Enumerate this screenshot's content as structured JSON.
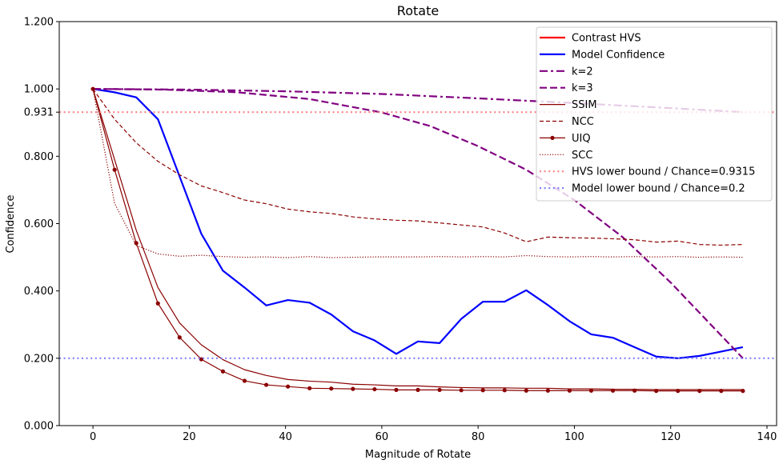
{
  "chart_data": {
    "type": "line",
    "title": "Rotate",
    "xlabel": "Magnitude of Rotate",
    "ylabel": "Confidence",
    "xlim": [
      -7,
      142
    ],
    "ylim": [
      0,
      1.2
    ],
    "xticks": [
      0,
      20,
      40,
      60,
      80,
      100,
      120,
      140
    ],
    "xtick_labels": [
      "0",
      "20",
      "40",
      "60",
      "80",
      "100",
      "120",
      "140"
    ],
    "yticks": [
      0.0,
      0.2,
      0.4,
      0.6,
      0.8,
      1.0,
      1.2
    ],
    "ytick_labels": [
      "0.000",
      "0.200",
      "0.400",
      "0.600",
      "0.800",
      "1.000",
      "1.200"
    ],
    "extra_yticks": [
      {
        "value": 0.931,
        "label": "0.931",
        "color": "#ff0000"
      },
      {
        "value": 0.2,
        "label": "0.200",
        "color": "#0000ff"
      }
    ],
    "legend_position": "top-right",
    "grid": false,
    "series": [
      {
        "name": "Contrast HVS",
        "color": "#ff0000",
        "style": "solid",
        "width": 2.2,
        "legend_only": true,
        "x": [],
        "y": []
      },
      {
        "name": "Model Confidence",
        "color": "#0000ff",
        "style": "solid",
        "width": 2.2,
        "x": [
          0,
          4.5,
          9,
          13.5,
          18,
          22.5,
          27,
          31.5,
          36,
          40.5,
          45,
          49.5,
          54,
          58.5,
          63,
          67.5,
          72,
          76.5,
          81,
          85.5,
          90,
          94.5,
          99,
          103.5,
          108,
          112.5,
          117,
          121.5,
          126,
          130.5,
          135
        ],
        "y": [
          1.0,
          0.99,
          0.975,
          0.91,
          0.74,
          0.57,
          0.46,
          0.41,
          0.357,
          0.373,
          0.365,
          0.33,
          0.28,
          0.253,
          0.213,
          0.25,
          0.245,
          0.317,
          0.368,
          0.368,
          0.402,
          0.358,
          0.31,
          0.271,
          0.261,
          0.233,
          0.205,
          0.2,
          0.207,
          0.22,
          0.233
        ]
      },
      {
        "name": "k=2",
        "color": "#800080",
        "style": "dashdot",
        "width": 2.2,
        "x": [
          0,
          20,
          40,
          60,
          80,
          100,
          120,
          135
        ],
        "y": [
          1.0,
          0.998,
          0.993,
          0.985,
          0.972,
          0.958,
          0.943,
          0.931
        ]
      },
      {
        "name": "k=3",
        "color": "#800080",
        "style": "dashed",
        "width": 2.2,
        "x": [
          0,
          15,
          30,
          45,
          60,
          70,
          80,
          90,
          100,
          110,
          120,
          130,
          135
        ],
        "y": [
          1.0,
          0.998,
          0.99,
          0.97,
          0.93,
          0.89,
          0.83,
          0.76,
          0.67,
          0.56,
          0.425,
          0.275,
          0.2
        ]
      },
      {
        "name": "SSIM",
        "color": "#8b0000",
        "style": "solid",
        "width": 1.2,
        "x": [
          0,
          4.5,
          9,
          13.5,
          18,
          22.5,
          27,
          31.5,
          36,
          40.5,
          45,
          49.5,
          54,
          58.5,
          63,
          67.5,
          72,
          76.5,
          81,
          85.5,
          90,
          94.5,
          99,
          103.5,
          108,
          112.5,
          117,
          121.5,
          126,
          130.5,
          135
        ],
        "y": [
          1.0,
          0.79,
          0.58,
          0.41,
          0.305,
          0.24,
          0.196,
          0.166,
          0.149,
          0.137,
          0.132,
          0.129,
          0.123,
          0.121,
          0.118,
          0.118,
          0.115,
          0.113,
          0.112,
          0.112,
          0.111,
          0.111,
          0.109,
          0.109,
          0.108,
          0.108,
          0.107,
          0.107,
          0.107,
          0.107,
          0.107
        ]
      },
      {
        "name": "NCC",
        "color": "#8b0000",
        "style": "dashed",
        "width": 1.2,
        "x": [
          0,
          4.5,
          9,
          13.5,
          18,
          22.5,
          27,
          31.5,
          36,
          40.5,
          45,
          49.5,
          54,
          58.5,
          63,
          67.5,
          72,
          76.5,
          81,
          85.5,
          90,
          94.5,
          99,
          103.5,
          108,
          112.5,
          117,
          121.5,
          126,
          130.5,
          135
        ],
        "y": [
          1.0,
          0.91,
          0.84,
          0.785,
          0.745,
          0.712,
          0.692,
          0.67,
          0.659,
          0.643,
          0.635,
          0.63,
          0.62,
          0.614,
          0.61,
          0.608,
          0.602,
          0.596,
          0.59,
          0.572,
          0.546,
          0.56,
          0.558,
          0.557,
          0.555,
          0.552,
          0.545,
          0.548,
          0.538,
          0.536,
          0.538
        ]
      },
      {
        "name": "UIQ",
        "color": "#8b0000",
        "style": "solid",
        "width": 1.2,
        "marker": "circle",
        "x": [
          0,
          4.5,
          9,
          13.5,
          18,
          22.5,
          27,
          31.5,
          36,
          40.5,
          45,
          49.5,
          54,
          58.5,
          63,
          67.5,
          72,
          76.5,
          81,
          85.5,
          90,
          94.5,
          99,
          103.5,
          108,
          112.5,
          117,
          121.5,
          126,
          130.5,
          135
        ],
        "y": [
          1.0,
          0.76,
          0.542,
          0.363,
          0.262,
          0.197,
          0.161,
          0.133,
          0.121,
          0.116,
          0.111,
          0.11,
          0.109,
          0.108,
          0.106,
          0.106,
          0.106,
          0.105,
          0.105,
          0.105,
          0.104,
          0.104,
          0.104,
          0.104,
          0.104,
          0.104,
          0.103,
          0.103,
          0.103,
          0.103,
          0.103
        ]
      },
      {
        "name": "SCC",
        "color": "#8b0000",
        "style": "dotted",
        "width": 1.2,
        "x": [
          0,
          4.5,
          9,
          13.5,
          18,
          22.5,
          27,
          31.5,
          36,
          40.5,
          45,
          49.5,
          54,
          58.5,
          63,
          67.5,
          72,
          76.5,
          81,
          85.5,
          90,
          94.5,
          99,
          103.5,
          108,
          112.5,
          117,
          121.5,
          126,
          130.5,
          135
        ],
        "y": [
          1.0,
          0.66,
          0.535,
          0.51,
          0.503,
          0.506,
          0.502,
          0.5,
          0.501,
          0.499,
          0.502,
          0.499,
          0.5,
          0.501,
          0.501,
          0.501,
          0.502,
          0.501,
          0.502,
          0.501,
          0.505,
          0.502,
          0.501,
          0.502,
          0.501,
          0.502,
          0.501,
          0.502,
          0.5,
          0.501,
          0.5
        ]
      },
      {
        "name": "HVS lower bound / Chance=0.9315",
        "color": "#ff8080",
        "style": "dotted",
        "width": 2.2,
        "hline": 0.931
      },
      {
        "name": "Model lower bound / Chance=0.2",
        "color": "#8080ff",
        "style": "dotted",
        "width": 2.2,
        "hline": 0.2
      }
    ]
  }
}
